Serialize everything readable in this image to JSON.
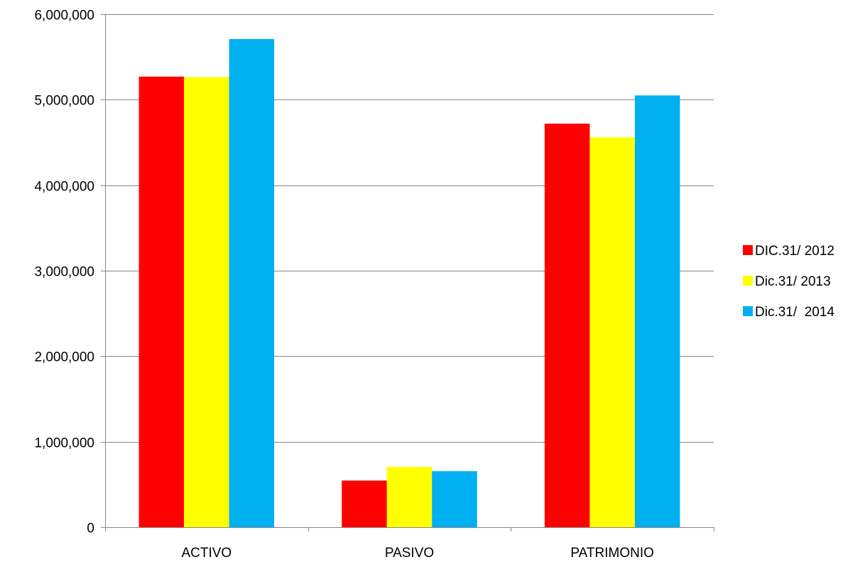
{
  "chart_data": {
    "type": "bar",
    "title": "",
    "xlabel": "",
    "ylabel": "",
    "categories": [
      "ACTIVO",
      "PASIVO",
      "PATRIMONIO"
    ],
    "series": [
      {
        "name": "DIC.31/ 2012",
        "color": "#FF0000",
        "values": [
          5270000,
          545000,
          4720000
        ]
      },
      {
        "name": "Dic.31/ 2013",
        "color": "#FFFF00",
        "values": [
          5265000,
          705000,
          4560000
        ]
      },
      {
        "name": "Dic.31/  2014",
        "color": "#00B0F0",
        "values": [
          5710000,
          655000,
          5050000
        ]
      }
    ],
    "ylim": [
      0,
      6000000
    ],
    "yticks": [
      0,
      1000000,
      2000000,
      3000000,
      4000000,
      5000000,
      6000000
    ],
    "ytick_labels": [
      "0",
      "1,000,000",
      "2,000,000",
      "3,000,000",
      "4,000,000",
      "5,000,000",
      "6,000,000"
    ],
    "grid": true,
    "legend_position": "right"
  }
}
